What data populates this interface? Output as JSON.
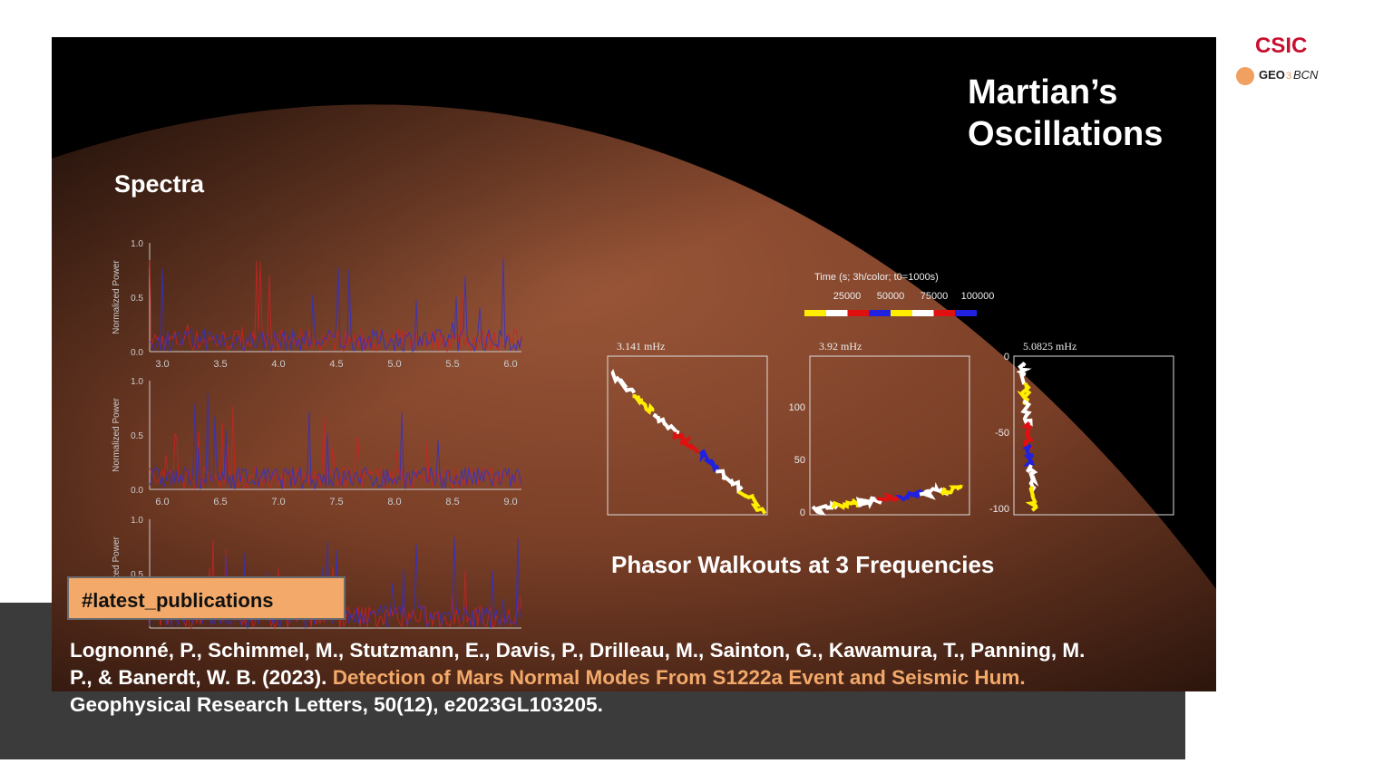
{
  "logos": {
    "csic": "CSIC",
    "geo": "GEO",
    "geo_num": "3",
    "bcn": "BCN"
  },
  "image": {
    "title": [
      "Martian’s",
      "Oscillations"
    ],
    "spectra_title": "Spectra",
    "phasor_title": "Phasor Walkouts at 3 Frequencies",
    "spectra": {
      "ylabel": "Normalized Power",
      "panels": [
        {
          "xticks": [
            "3.0",
            "3.5",
            "4.0",
            "4.5",
            "5.0",
            "5.5",
            "6.0"
          ],
          "yticks": [
            "1.0",
            "0.5",
            "0.0"
          ]
        },
        {
          "xticks": [
            "6.0",
            "6.5",
            "7.0",
            "7.5",
            "8.0",
            "8.5",
            "9.0"
          ],
          "yticks": [
            "1.0",
            "0.5",
            "0.0"
          ]
        },
        {
          "xticks": [],
          "yticks": [
            "1.0",
            "0.5"
          ]
        }
      ]
    },
    "phasor": {
      "colorbar_title": "Time (s; 3h/color; t0=1000s)",
      "colorbar_ticks": [
        "25000",
        "50000",
        "75000",
        "100000"
      ],
      "panels": [
        {
          "label": "3.141 mHz",
          "yticks": []
        },
        {
          "label": "3.92 mHz",
          "yticks": [
            "100",
            "50",
            "0"
          ]
        },
        {
          "label": "5.0825 mHz",
          "yticks": [
            "0",
            "-50",
            "-100"
          ]
        }
      ]
    }
  },
  "tag": "#latest_publications",
  "citation": {
    "authors": "Lognonné, P., Schimmel, M., Stutzmann, E., Davis, P., Drilleau, M., Sainton, G., Kawamura, T., Panning, M. P., & Banerdt, W. B. (2023).",
    "title": "Detection of Mars Normal Modes From S1222a Event and Seismic Hum.",
    "journal": "Geophysical Research Letters, 50(12), e2023GL103205."
  }
}
